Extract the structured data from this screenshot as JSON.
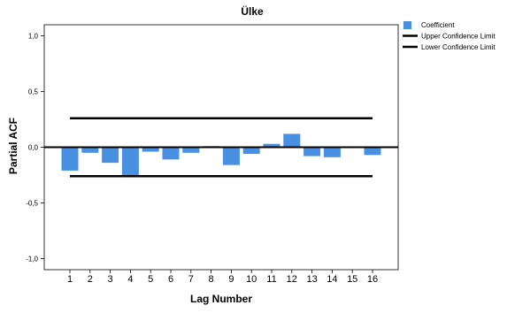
{
  "chart_data": {
    "type": "bar",
    "title": "Ülke",
    "xlabel": "Lag Number",
    "ylabel": "Partial ACF",
    "categories": [
      "1",
      "2",
      "3",
      "4",
      "5",
      "6",
      "7",
      "8",
      "9",
      "10",
      "11",
      "12",
      "13",
      "14",
      "15",
      "16"
    ],
    "ylim": [
      -1.1,
      1.1
    ],
    "yticks": [
      1.0,
      0.5,
      0.0,
      -0.5,
      -1.0
    ],
    "ytick_labels": [
      "1,0",
      "0,5",
      "0,0",
      "-0,5",
      "-1,0"
    ],
    "series": [
      {
        "name": "Coefficient",
        "values": [
          -0.21,
          -0.05,
          -0.14,
          -0.27,
          -0.04,
          -0.11,
          -0.05,
          0.01,
          -0.16,
          -0.06,
          0.03,
          0.12,
          -0.08,
          -0.09,
          0.0,
          -0.07
        ]
      },
      {
        "name": "Upper Confidence Limit",
        "value": 0.26
      },
      {
        "name": "Lower Confidence Limit",
        "value": -0.26
      }
    ],
    "legend": {
      "position": "top-right",
      "items": [
        "Coefficient",
        "Upper Confidence Limit",
        "Lower Confidence Limit"
      ]
    },
    "colors": {
      "bar": "#4a90e2",
      "limit_line": "#000000",
      "axis": "#000000",
      "background": "#ffffff"
    },
    "grid": false
  }
}
